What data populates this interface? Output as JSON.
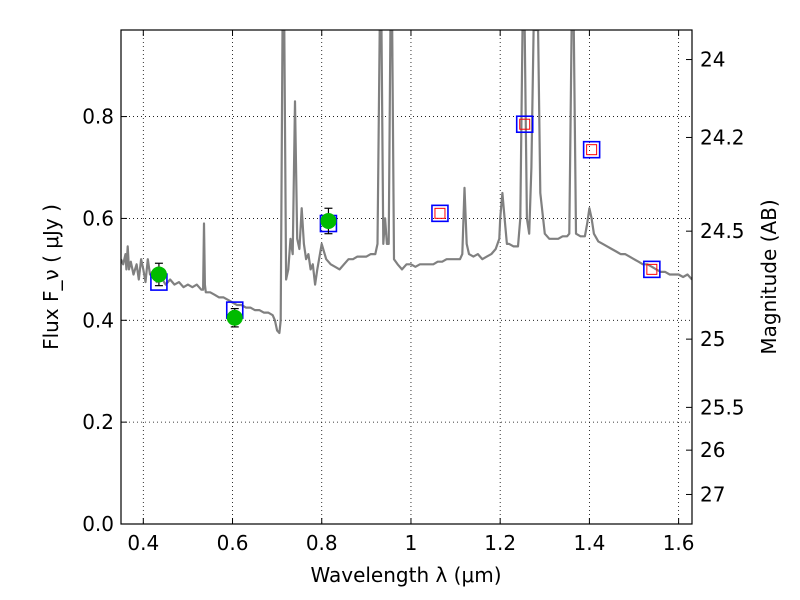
{
  "chart_data": {
    "type": "scatter",
    "xlabel": "Wavelength  λ (μm)",
    "ylabel": "Flux  F_ν  ( μJy )",
    "ylabel_right": "Magnitude (AB)",
    "xlim": [
      0.35,
      1.63
    ],
    "ylim": [
      0.0,
      0.97
    ],
    "grid": true,
    "x_ticks": [
      0.4,
      0.6,
      0.8,
      1.0,
      1.2,
      1.4,
      1.6
    ],
    "x_tick_labels": [
      "0.4",
      "0.6",
      "0.8",
      "1",
      "1.2",
      "1.4",
      "1.6"
    ],
    "y_ticks": [
      0.0,
      0.2,
      0.4,
      0.6,
      0.8
    ],
    "y_tick_labels": [
      "0.0",
      "0.2",
      "0.4",
      "0.6",
      "0.8"
    ],
    "right_ticks": [
      {
        "label": "24",
        "flux": 0.912
      },
      {
        "label": "24.2",
        "flux": 0.759
      },
      {
        "label": "24.5",
        "flux": 0.575
      },
      {
        "label": "25",
        "flux": 0.363
      },
      {
        "label": "25.5",
        "flux": 0.229
      },
      {
        "label": "26",
        "flux": 0.145
      },
      {
        "label": "27",
        "flux": 0.058
      }
    ],
    "series": [
      {
        "style": "line",
        "color": "#808080",
        "points": [
          [
            0.35,
            0.52
          ],
          [
            0.355,
            0.51
          ],
          [
            0.36,
            0.53
          ],
          [
            0.362,
            0.5
          ],
          [
            0.365,
            0.545
          ],
          [
            0.368,
            0.5
          ],
          [
            0.372,
            0.515
          ],
          [
            0.378,
            0.49
          ],
          [
            0.385,
            0.51
          ],
          [
            0.39,
            0.48
          ],
          [
            0.395,
            0.52
          ],
          [
            0.4,
            0.5
          ],
          [
            0.405,
            0.475
          ],
          [
            0.41,
            0.52
          ],
          [
            0.415,
            0.49
          ],
          [
            0.42,
            0.495
          ],
          [
            0.43,
            0.475
          ],
          [
            0.44,
            0.485
          ],
          [
            0.45,
            0.47
          ],
          [
            0.46,
            0.48
          ],
          [
            0.47,
            0.47
          ],
          [
            0.48,
            0.475
          ],
          [
            0.49,
            0.465
          ],
          [
            0.5,
            0.47
          ],
          [
            0.51,
            0.465
          ],
          [
            0.52,
            0.47
          ],
          [
            0.53,
            0.46
          ],
          [
            0.534,
            0.46
          ],
          [
            0.536,
            0.59
          ],
          [
            0.538,
            0.47
          ],
          [
            0.54,
            0.455
          ],
          [
            0.55,
            0.455
          ],
          [
            0.56,
            0.45
          ],
          [
            0.57,
            0.445
          ],
          [
            0.58,
            0.445
          ],
          [
            0.59,
            0.44
          ],
          [
            0.6,
            0.435
          ],
          [
            0.61,
            0.43
          ],
          [
            0.62,
            0.43
          ],
          [
            0.63,
            0.425
          ],
          [
            0.64,
            0.425
          ],
          [
            0.65,
            0.42
          ],
          [
            0.66,
            0.42
          ],
          [
            0.67,
            0.415
          ],
          [
            0.68,
            0.415
          ],
          [
            0.69,
            0.41
          ],
          [
            0.695,
            0.4
          ],
          [
            0.7,
            0.38
          ],
          [
            0.705,
            0.375
          ],
          [
            0.708,
            0.4
          ],
          [
            0.712,
            0.97
          ],
          [
            0.716,
            0.97
          ],
          [
            0.72,
            0.48
          ],
          [
            0.725,
            0.5
          ],
          [
            0.73,
            0.56
          ],
          [
            0.735,
            0.53
          ],
          [
            0.74,
            0.83
          ],
          [
            0.745,
            0.56
          ],
          [
            0.75,
            0.54
          ],
          [
            0.755,
            0.62
          ],
          [
            0.76,
            0.55
          ],
          [
            0.765,
            0.52
          ],
          [
            0.77,
            0.53
          ],
          [
            0.775,
            0.5
          ],
          [
            0.78,
            0.51
          ],
          [
            0.785,
            0.47
          ],
          [
            0.79,
            0.5
          ],
          [
            0.8,
            0.55
          ],
          [
            0.81,
            0.52
          ],
          [
            0.82,
            0.51
          ],
          [
            0.83,
            0.505
          ],
          [
            0.84,
            0.5
          ],
          [
            0.85,
            0.51
          ],
          [
            0.86,
            0.52
          ],
          [
            0.87,
            0.52
          ],
          [
            0.88,
            0.525
          ],
          [
            0.89,
            0.525
          ],
          [
            0.9,
            0.525
          ],
          [
            0.91,
            0.53
          ],
          [
            0.92,
            0.53
          ],
          [
            0.925,
            0.55
          ],
          [
            0.93,
            0.97
          ],
          [
            0.934,
            0.97
          ],
          [
            0.938,
            0.55
          ],
          [
            0.942,
            0.6
          ],
          [
            0.946,
            0.55
          ],
          [
            0.95,
            0.55
          ],
          [
            0.954,
            0.97
          ],
          [
            0.958,
            0.97
          ],
          [
            0.962,
            0.52
          ],
          [
            0.97,
            0.51
          ],
          [
            0.98,
            0.5
          ],
          [
            0.99,
            0.51
          ],
          [
            1.0,
            0.51
          ],
          [
            1.01,
            0.505
          ],
          [
            1.02,
            0.51
          ],
          [
            1.03,
            0.51
          ],
          [
            1.04,
            0.51
          ],
          [
            1.05,
            0.51
          ],
          [
            1.06,
            0.515
          ],
          [
            1.07,
            0.515
          ],
          [
            1.08,
            0.52
          ],
          [
            1.09,
            0.52
          ],
          [
            1.1,
            0.52
          ],
          [
            1.11,
            0.52
          ],
          [
            1.115,
            0.53
          ],
          [
            1.12,
            0.66
          ],
          [
            1.125,
            0.55
          ],
          [
            1.13,
            0.53
          ],
          [
            1.14,
            0.525
          ],
          [
            1.15,
            0.53
          ],
          [
            1.16,
            0.52
          ],
          [
            1.17,
            0.525
          ],
          [
            1.18,
            0.53
          ],
          [
            1.19,
            0.54
          ],
          [
            1.198,
            0.56
          ],
          [
            1.2,
            0.6
          ],
          [
            1.205,
            0.65
          ],
          [
            1.21,
            0.6
          ],
          [
            1.215,
            0.55
          ],
          [
            1.22,
            0.55
          ],
          [
            1.23,
            0.545
          ],
          [
            1.24,
            0.545
          ],
          [
            1.245,
            0.6
          ],
          [
            1.25,
            0.97
          ],
          [
            1.255,
            0.97
          ],
          [
            1.26,
            0.6
          ],
          [
            1.265,
            0.57
          ],
          [
            1.27,
            0.7
          ],
          [
            1.275,
            0.97
          ],
          [
            1.285,
            0.97
          ],
          [
            1.29,
            0.65
          ],
          [
            1.3,
            0.57
          ],
          [
            1.31,
            0.56
          ],
          [
            1.32,
            0.56
          ],
          [
            1.33,
            0.56
          ],
          [
            1.34,
            0.565
          ],
          [
            1.35,
            0.565
          ],
          [
            1.355,
            0.57
          ],
          [
            1.36,
            0.97
          ],
          [
            1.365,
            0.97
          ],
          [
            1.37,
            0.57
          ],
          [
            1.38,
            0.565
          ],
          [
            1.39,
            0.565
          ],
          [
            1.395,
            0.59
          ],
          [
            1.4,
            0.62
          ],
          [
            1.405,
            0.6
          ],
          [
            1.41,
            0.57
          ],
          [
            1.42,
            0.555
          ],
          [
            1.43,
            0.55
          ],
          [
            1.44,
            0.545
          ],
          [
            1.45,
            0.54
          ],
          [
            1.46,
            0.535
          ],
          [
            1.47,
            0.53
          ],
          [
            1.48,
            0.53
          ],
          [
            1.49,
            0.525
          ],
          [
            1.5,
            0.52
          ],
          [
            1.51,
            0.515
          ],
          [
            1.52,
            0.51
          ],
          [
            1.53,
            0.51
          ],
          [
            1.54,
            0.505
          ],
          [
            1.55,
            0.5
          ],
          [
            1.56,
            0.495
          ],
          [
            1.57,
            0.495
          ],
          [
            1.58,
            0.49
          ],
          [
            1.59,
            0.49
          ],
          [
            1.6,
            0.49
          ],
          [
            1.61,
            0.485
          ],
          [
            1.62,
            0.49
          ],
          [
            1.63,
            0.48
          ]
        ]
      },
      {
        "style": "marker-square-open",
        "color": "#0000ff",
        "points": [
          [
            0.435,
            0.475
          ],
          [
            0.605,
            0.42
          ],
          [
            0.815,
            0.59
          ],
          [
            1.065,
            0.61
          ],
          [
            1.255,
            0.785
          ],
          [
            1.405,
            0.735
          ],
          [
            1.54,
            0.5
          ]
        ]
      },
      {
        "style": "marker-square-small",
        "color": "#ff0000",
        "points": [
          [
            1.065,
            0.61
          ],
          [
            1.255,
            0.785
          ],
          [
            1.405,
            0.735
          ],
          [
            1.54,
            0.5
          ]
        ]
      },
      {
        "style": "marker-circle-filled",
        "color": "#00bb00",
        "points": [
          [
            0.435,
            0.49
          ],
          [
            0.605,
            0.405
          ],
          [
            0.815,
            0.595
          ]
        ],
        "errors": [
          0.022,
          0.018,
          0.025
        ]
      }
    ]
  }
}
